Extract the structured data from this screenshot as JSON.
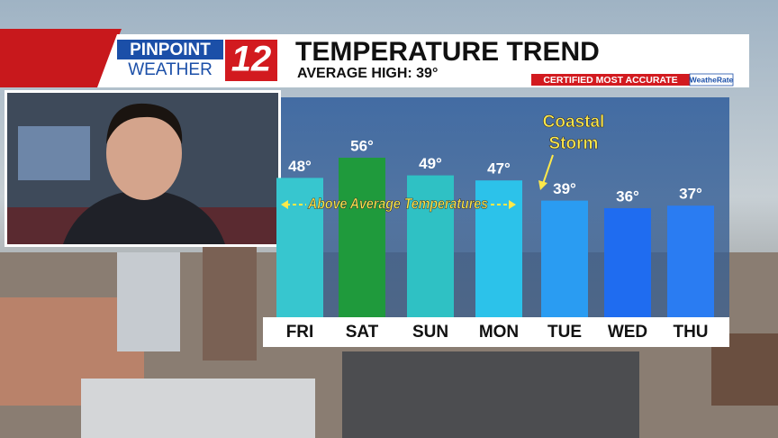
{
  "brand": {
    "line1": "PINPOINT",
    "line2": "WEATHER",
    "channel": "12",
    "certified": "CERTIFIED MOST ACCURATE",
    "rater": "WeatheRate"
  },
  "chart_data": {
    "type": "bar",
    "title": "TEMPERATURE TREND",
    "subtitle": "AVERAGE HIGH:  39°",
    "categories": [
      "FRI",
      "SAT",
      "SUN",
      "MON",
      "TUE",
      "WED",
      "THU"
    ],
    "values": [
      48,
      56,
      49,
      47,
      39,
      36,
      37
    ],
    "value_labels": [
      "48°",
      "56°",
      "49°",
      "47°",
      "39°",
      "36°",
      "37°"
    ],
    "colors": [
      "#37c6cf",
      "#1f9a3c",
      "#2fc1c4",
      "#2cc2ea",
      "#2a9cf2",
      "#1f6cf0",
      "#2a7cf2"
    ],
    "annotations": [
      {
        "text": "Above Average Temperatures"
      },
      {
        "lines": [
          "Coastal",
          "Storm"
        ]
      }
    ]
  }
}
